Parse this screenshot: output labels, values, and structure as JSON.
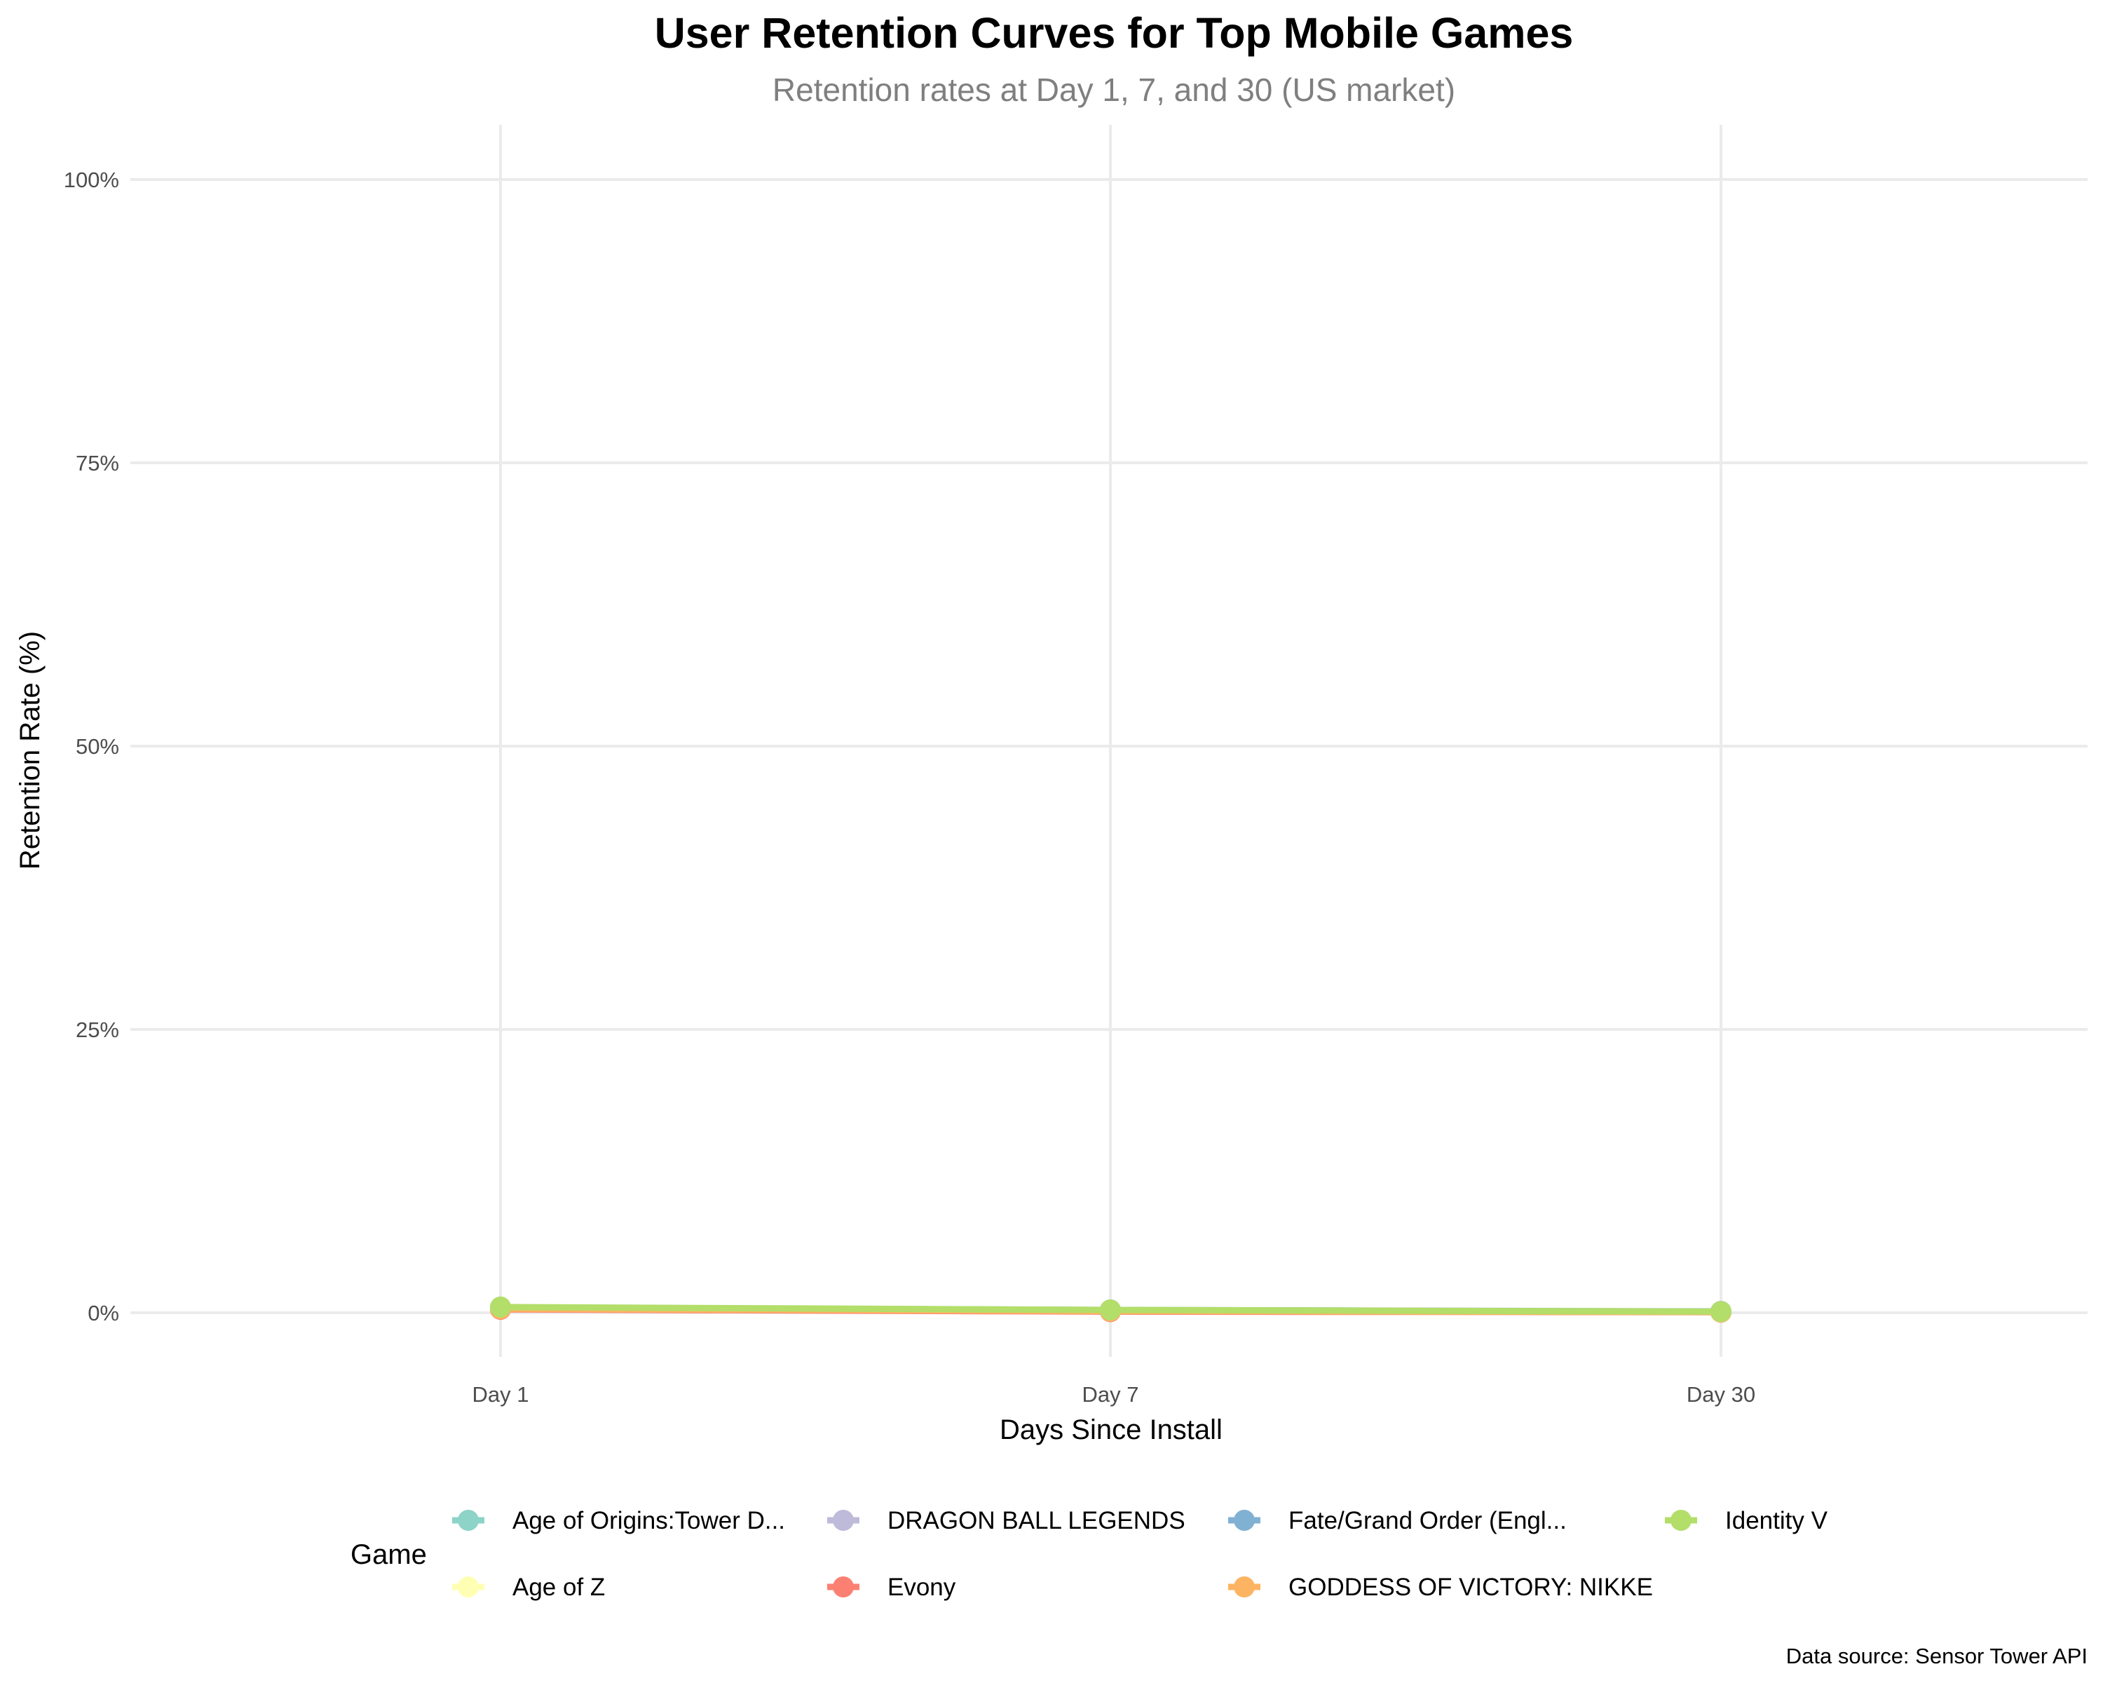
{
  "chart_data": {
    "type": "line",
    "title": "User Retention Curves for Top Mobile Games",
    "subtitle": "Retention rates at Day 1, 7, and 30 (US market)",
    "xlabel": "Days Since Install",
    "ylabel": "Retention Rate (%)",
    "categories": [
      "Day 1",
      "Day 7",
      "Day 30"
    ],
    "ylim": [
      -5,
      105
    ],
    "yticks": [
      0,
      25,
      50,
      75,
      100
    ],
    "ytick_labels": [
      "0%",
      "25%",
      "50%",
      "75%",
      "100%"
    ],
    "grid": true,
    "legend_position": "bottom",
    "legend_title": "Game",
    "caption": "Data source: Sensor Tower API",
    "series": [
      {
        "name": "Age of Origins:Tower D...",
        "color": "#8DD3C7",
        "values": [
          0.4,
          0.2,
          0.1
        ]
      },
      {
        "name": "Age of Z",
        "color": "#FFFFB3",
        "values": [
          0.3,
          0.1,
          0.05
        ]
      },
      {
        "name": "DRAGON BALL LEGENDS",
        "color": "#BEBADA",
        "values": [
          0.4,
          0.2,
          0.1
        ]
      },
      {
        "name": "Evony",
        "color": "#FB8072",
        "values": [
          0.3,
          0.1,
          0.05
        ]
      },
      {
        "name": "Fate/Grand Order (Engl...",
        "color": "#80B1D3",
        "values": [
          0.45,
          0.25,
          0.12
        ]
      },
      {
        "name": "GODDESS OF VICTORY: NIKKE",
        "color": "#FDB462",
        "values": [
          0.35,
          0.15,
          0.06
        ]
      },
      {
        "name": "Identity V",
        "color": "#B3DE69",
        "values": [
          0.5,
          0.25,
          0.1
        ]
      }
    ]
  }
}
